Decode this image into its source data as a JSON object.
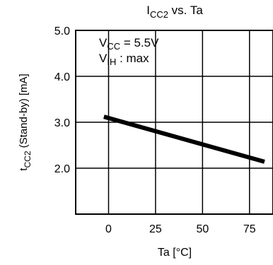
{
  "chart_data": {
    "type": "line",
    "title": {
      "main": "I",
      "sub": "CC2",
      "rest": " vs. Ta"
    },
    "xlabel": "Ta [°C]",
    "ylabel": {
      "main": "t",
      "sub": "CC2",
      "rest": " (Stand-by) [mA]"
    },
    "xlim": [
      -17.5,
      87.5
    ],
    "ylim": [
      1.0,
      5.0
    ],
    "x_ticks": [
      0,
      25,
      50,
      75
    ],
    "x_tick_labels": [
      "0",
      "25",
      "50",
      "75"
    ],
    "y_ticks": [
      2.0,
      3.0,
      4.0,
      5.0
    ],
    "y_tick_labels": [
      "2.0",
      "3.0",
      "4.0",
      "5.0"
    ],
    "grid": true,
    "annotations": [
      {
        "main": "V",
        "sub": "CC",
        "rest": " = 5.5V"
      },
      {
        "main": "V",
        "sub": "IH",
        "rest": " : max"
      }
    ],
    "series": [
      {
        "x": [
          -2.5,
          83
        ],
        "y": [
          3.12,
          2.14
        ]
      }
    ],
    "colors": {
      "line": "#000000",
      "grid": "#000000",
      "background": "#ffffff"
    }
  }
}
